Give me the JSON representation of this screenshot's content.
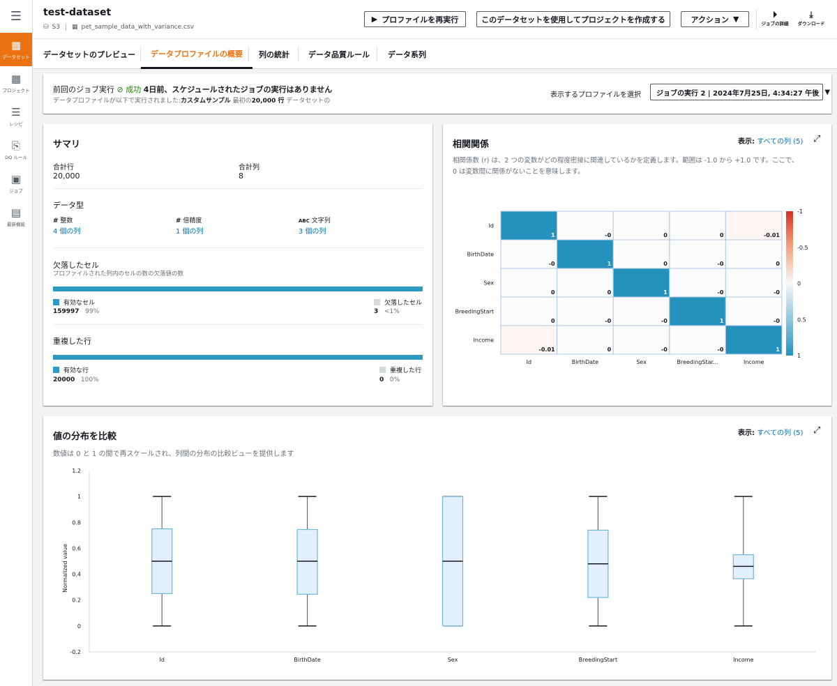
{
  "rail": {
    "menu_icon": "menu-icon",
    "items": [
      {
        "label": "データセット",
        "icon": "grid-icon",
        "glyph": "▦"
      },
      {
        "label": "プロジェクト",
        "icon": "grid-icon",
        "glyph": "▦"
      },
      {
        "label": "レシピ",
        "icon": "list-icon",
        "glyph": "☰"
      },
      {
        "label": "DQ ルール",
        "icon": "doc-check-icon",
        "glyph": "⎘"
      },
      {
        "label": "ジョブ",
        "icon": "play-icon",
        "glyph": "▶"
      },
      {
        "label": "最新機能",
        "icon": "news-icon",
        "glyph": "▤"
      }
    ]
  },
  "header": {
    "title": "test-dataset",
    "source": "S3",
    "file": "pet_sample_data_with_variance.csv",
    "btn_rerun": "プロファイルを再実行",
    "btn_create_project": "このデータセットを使用してプロジェクトを作成する",
    "btn_actions": "アクション",
    "job_details": "ジョブの詳細",
    "download": "ダウンロード"
  },
  "tabs": [
    "データセットのプレビュー",
    "データプロファイルの概要",
    "列の統計",
    "データ品質ルール",
    "データ系列"
  ],
  "job_info": {
    "prefix": "前回のジョブ実行",
    "status": "成功",
    "when": "4日前、スケジュールされたジョブの実行はありません",
    "line2_a": "データプロファイルが以下で実行されました:",
    "line2_b": "カスタムサンプル",
    "line2_c": " 最初の",
    "line2_d": "20,000 行",
    "line2_e": " データセットの",
    "select_label": "表示するプロファイルを選択",
    "select_value": "ジョブの実行 2 | 2024年7月25日, 4:34:27 午後"
  },
  "summary": {
    "title": "サマリ",
    "total_rows_label": "合計行",
    "total_rows": "20,000",
    "total_cols_label": "合計列",
    "total_cols": "8",
    "dtype_title": "データ型",
    "int_glyph": "#",
    "int_label": "整数",
    "int_count": "4 個の列",
    "dbl_glyph": "#",
    "dbl_label": "倍精度",
    "dbl_count": "1 個の列",
    "str_glyph": "ABC",
    "str_label": "文字列",
    "str_count": "3 個の列",
    "missing_title": "欠落したセル",
    "missing_desc": "プロファイルされた列内のセルの数の欠落値の数",
    "valid_cells_label": "有効なセル",
    "valid_cells": "159997",
    "valid_cells_pct": "99%",
    "missing_cells_label": "欠落したセル",
    "missing_cells": "3",
    "missing_cells_pct": "<1%",
    "valid_cells_fraction": 0.9998,
    "dup_title": "重複した行",
    "valid_rows_label": "有効な行",
    "valid_rows": "20000",
    "valid_rows_pct": "100%",
    "dup_rows_label": "重複した行",
    "dup_rows": "0",
    "dup_rows_pct": "0%",
    "valid_rows_fraction": 1.0
  },
  "correlation": {
    "title": "相関関係",
    "show_label": "表示:",
    "show_value": "すべての列 (5)",
    "desc1": "相関係数 (r) は、2 つの変数がどの程度密接に関連しているかを定義します。範囲は -1.0 から +1.0 です。ここで、",
    "desc2": "0 は変数間に関係がないことを意味します。",
    "expand_icon": "expand-icon"
  },
  "distribution": {
    "title": "値の分布を比較",
    "show_label": "表示:",
    "show_value": "すべての列 (5)",
    "desc": "数値は 0 と 1 の間で再スケールされ、列間の分布の比較ビューを提供します",
    "expand_icon": "expand-icon"
  },
  "colors": {
    "accent": "#ec7211",
    "link": "#0073bb",
    "bar": "#2e9ac1",
    "success": "#1d8102"
  },
  "chart_data": [
    {
      "type": "heatmap",
      "rows": [
        "Id",
        "BirthDate",
        "Sex",
        "BreedingStart",
        "Income"
      ],
      "cols": [
        "Id",
        "BirthDate",
        "Sex",
        "BreedingStar...",
        "Income"
      ],
      "values": [
        [
          1,
          0,
          0,
          0,
          -0.01
        ],
        [
          0,
          1,
          0,
          0,
          0
        ],
        [
          0,
          0,
          1,
          0,
          0
        ],
        [
          0,
          0,
          0,
          1,
          0
        ],
        [
          -0.01,
          0,
          0,
          0,
          1
        ]
      ],
      "labels": [
        [
          "1",
          "-0",
          "0",
          "0",
          "-0.01"
        ],
        [
          "-0",
          "1",
          "0",
          "-0",
          "0"
        ],
        [
          "0",
          "0",
          "1",
          "-0",
          "-0"
        ],
        [
          "0",
          "-0",
          "-0",
          "1",
          "-0"
        ],
        [
          "-0.01",
          "0",
          "-0",
          "-0",
          "1"
        ]
      ],
      "colorbar_ticks": [
        "-1",
        "-0.5",
        "0",
        "0.5",
        "1"
      ]
    },
    {
      "type": "box",
      "ylabel": "Normalized value",
      "ylim": [
        -0.2,
        1.2
      ],
      "yticks": [
        "1.2",
        "1",
        "0.8",
        "0.6",
        "0.4",
        "0.2",
        "0",
        "-0.2"
      ],
      "categories": [
        "Id",
        "BirthDate",
        "Sex",
        "BreedingStart",
        "Income"
      ],
      "boxes": [
        {
          "min": 0,
          "q1": 0.25,
          "median": 0.5,
          "q3": 0.75,
          "max": 1
        },
        {
          "min": 0,
          "q1": 0.245,
          "median": 0.5,
          "q3": 0.745,
          "max": 1
        },
        {
          "min": 0,
          "q1": 0,
          "median": 0.5,
          "q3": 1,
          "max": 1
        },
        {
          "min": 0,
          "q1": 0.22,
          "median": 0.48,
          "q3": 0.74,
          "max": 1
        },
        {
          "min": 0,
          "q1": 0.365,
          "median": 0.46,
          "q3": 0.55,
          "max": 1
        }
      ]
    }
  ]
}
